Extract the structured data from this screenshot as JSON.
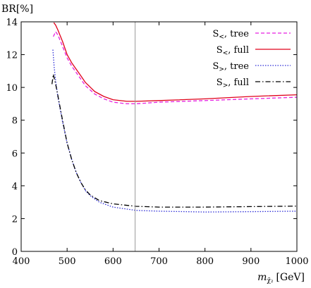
{
  "chart_data": {
    "type": "line",
    "title": "",
    "ylabel": "BR[%]",
    "xlabel_main": "m",
    "xlabel_sub": "χ̃₂",
    "xlabel_unit": "[GeV]",
    "xlim": [
      400,
      1000
    ],
    "ylim": [
      0,
      14
    ],
    "xticks": [
      400,
      500,
      600,
      700,
      800,
      900,
      1000
    ],
    "yticks": [
      0,
      2,
      4,
      6,
      8,
      10,
      12,
      14
    ],
    "grid": false,
    "legend_position": "top-right",
    "vline": {
      "x": 648,
      "color": "#999999"
    },
    "series": [
      {
        "name_main": "S",
        "name_sub": "<",
        "name_suffix": ", tree",
        "color": "#e61fe0",
        "dash": "5,3",
        "x": [
          470,
          475,
          480,
          490,
          500,
          510,
          520,
          530,
          540,
          560,
          580,
          600,
          630,
          650,
          700,
          800,
          900,
          1000
        ],
        "y": [
          13.1,
          13.4,
          13.2,
          12.5,
          11.8,
          11.3,
          10.9,
          10.5,
          10.1,
          9.6,
          9.3,
          9.1,
          9.0,
          9.0,
          9.1,
          9.2,
          9.3,
          9.4
        ]
      },
      {
        "name_main": "S",
        "name_sub": "<",
        "name_suffix": ", full",
        "color": "#e0001a",
        "dash": "",
        "x": [
          471,
          475,
          480,
          490,
          500,
          510,
          520,
          530,
          540,
          560,
          580,
          600,
          630,
          650,
          700,
          800,
          900,
          1000
        ],
        "y": [
          13.95,
          13.8,
          13.5,
          12.8,
          12.0,
          11.5,
          11.1,
          10.7,
          10.3,
          9.75,
          9.45,
          9.25,
          9.15,
          9.15,
          9.2,
          9.3,
          9.45,
          9.55
        ]
      },
      {
        "name_main": "S",
        "name_sub": ">",
        "name_suffix": ", tree",
        "color": "#2c2cd6",
        "dash": "1.5,2",
        "x": [
          469,
          472,
          475,
          480,
          490,
          500,
          510,
          520,
          530,
          540,
          550,
          570,
          600,
          650,
          700,
          800,
          900,
          1000
        ],
        "y": [
          12.3,
          11.2,
          10.4,
          9.4,
          7.9,
          6.6,
          5.6,
          4.8,
          4.2,
          3.7,
          3.4,
          3.0,
          2.7,
          2.5,
          2.45,
          2.4,
          2.42,
          2.45
        ]
      },
      {
        "name_main": "S",
        "name_sub": ">",
        "name_suffix": ", full",
        "color": "#000000",
        "dash": "7,3,1.5,3",
        "x": [
          467,
          470,
          475,
          480,
          490,
          500,
          510,
          520,
          530,
          540,
          550,
          570,
          600,
          650,
          700,
          800,
          900,
          1000
        ],
        "y": [
          10.2,
          10.8,
          10.2,
          9.5,
          8.0,
          6.6,
          5.6,
          4.8,
          4.2,
          3.75,
          3.45,
          3.1,
          2.9,
          2.75,
          2.7,
          2.7,
          2.73,
          2.76
        ]
      }
    ]
  }
}
